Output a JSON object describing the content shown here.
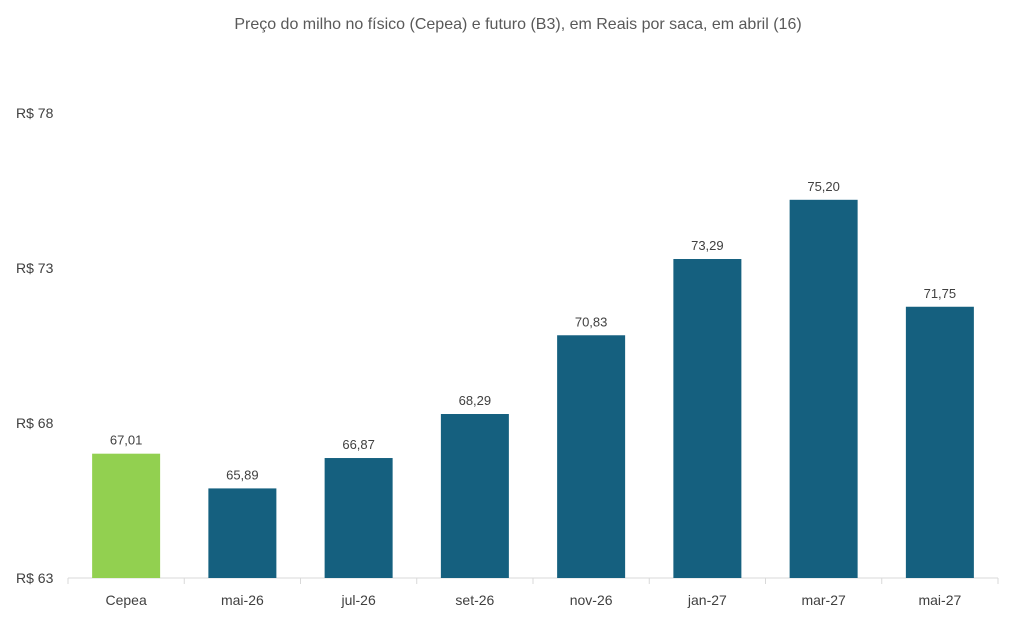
{
  "chart_data": {
    "type": "bar",
    "title": "Preço do milho no físico (Cepea) e futuro (B3), em Reais por saca, em abril (16)",
    "xlabel": "",
    "ylabel": "",
    "categories": [
      "Cepea",
      "mai-26",
      "jul-26",
      "set-26",
      "nov-26",
      "jan-27",
      "mar-27",
      "mai-27"
    ],
    "values": [
      67.01,
      65.89,
      66.87,
      68.29,
      70.83,
      73.29,
      75.2,
      71.75
    ],
    "value_labels": [
      "67,01",
      "65,89",
      "66,87",
      "68,29",
      "70,83",
      "73,29",
      "75,20",
      "71,75"
    ],
    "ylim": [
      63,
      78
    ],
    "y_ticks": [
      63,
      68,
      73,
      78
    ],
    "y_tick_labels": [
      "R$ 63",
      "R$ 68",
      "R$ 73",
      "R$ 78"
    ],
    "grid": false,
    "legend": "none",
    "colors": {
      "highlight": "#92d050",
      "bars": "#15607f",
      "axis": "#d9d9d9"
    },
    "highlight_categories": [
      "Cepea"
    ]
  }
}
